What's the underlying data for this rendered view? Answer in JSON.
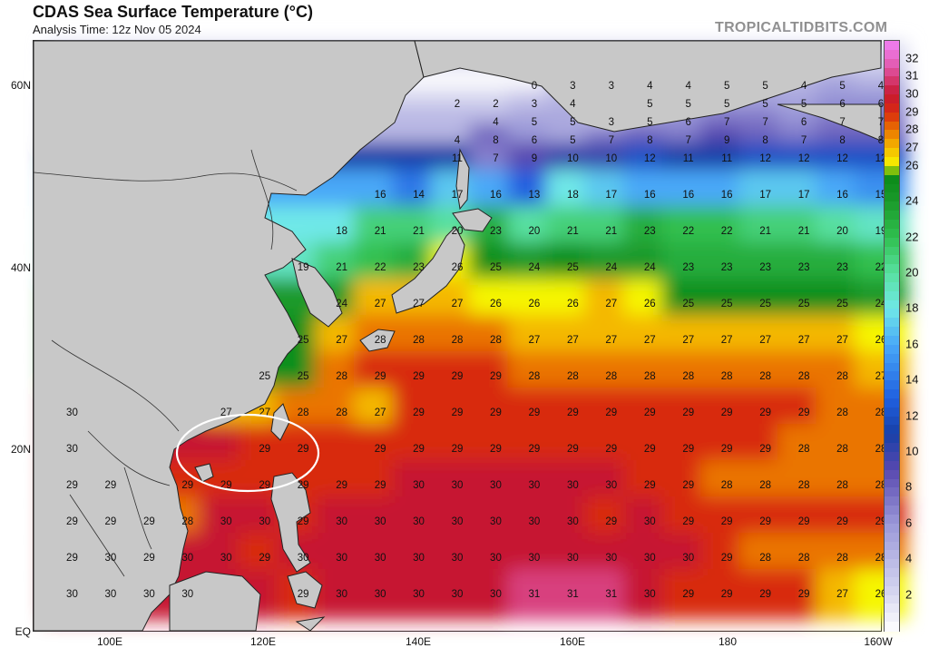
{
  "header": {
    "title": "CDAS Sea Surface Temperature (°C)",
    "subtitle": "Analysis Time: 12z Nov 05 2024",
    "credit": "TROPICALTIDBITS.COM"
  },
  "map": {
    "region": "Western/Central North Pacific",
    "lat_labels": [
      "60N",
      "40N",
      "20N",
      "EQ"
    ],
    "lon_labels": [
      "100E",
      "120E",
      "140E",
      "160E",
      "180",
      "160W"
    ],
    "highlight": "circle around Luzon Strait / northern South China Sea",
    "colors": {
      "land": "#c8c8c8",
      "coast": "#222222",
      "annotation_circle": "#ffffff"
    }
  },
  "sst_grid": {
    "lons": [
      95,
      100,
      105,
      110,
      115,
      120,
      125,
      130,
      135,
      140,
      145,
      150,
      155,
      160,
      165,
      170,
      175,
      180,
      185,
      190,
      195,
      200
    ],
    "rows": [
      {
        "lat": 62,
        "values": [
          null,
          null,
          null,
          null,
          null,
          null,
          null,
          null,
          null,
          null,
          null,
          null,
          null,
          null,
          null,
          null,
          null,
          null,
          null,
          null,
          null,
          null
        ]
      },
      {
        "lat": 60,
        "values": [
          null,
          null,
          null,
          null,
          null,
          null,
          null,
          null,
          null,
          null,
          null,
          null,
          0,
          3,
          3,
          4,
          4,
          5,
          5,
          4,
          5,
          4
        ]
      },
      {
        "lat": 58,
        "values": [
          null,
          null,
          null,
          null,
          null,
          null,
          null,
          null,
          null,
          null,
          2,
          2,
          3,
          4,
          null,
          5,
          5,
          5,
          5,
          5,
          6,
          6
        ]
      },
      {
        "lat": 56,
        "values": [
          null,
          null,
          null,
          null,
          null,
          null,
          null,
          null,
          null,
          null,
          null,
          4,
          5,
          5,
          3,
          5,
          6,
          7,
          7,
          6,
          7,
          7
        ]
      },
      {
        "lat": 54,
        "values": [
          null,
          null,
          null,
          null,
          null,
          null,
          null,
          null,
          null,
          null,
          4,
          8,
          6,
          5,
          7,
          8,
          7,
          9,
          8,
          7,
          8,
          8
        ]
      },
      {
        "lat": 52,
        "values": [
          null,
          null,
          null,
          null,
          null,
          null,
          null,
          null,
          null,
          null,
          11,
          7,
          9,
          10,
          10,
          12,
          11,
          11,
          12,
          12,
          12,
          12
        ]
      },
      {
        "lat": 48,
        "values": [
          null,
          null,
          null,
          null,
          null,
          null,
          null,
          null,
          16,
          14,
          17,
          16,
          13,
          18,
          17,
          16,
          16,
          16,
          17,
          17,
          16,
          15
        ]
      },
      {
        "lat": 44,
        "values": [
          null,
          null,
          null,
          null,
          null,
          null,
          null,
          18,
          21,
          21,
          20,
          23,
          20,
          21,
          21,
          23,
          22,
          22,
          21,
          21,
          20,
          19
        ]
      },
      {
        "lat": 40,
        "values": [
          null,
          null,
          null,
          null,
          null,
          null,
          19,
          21,
          22,
          23,
          26,
          25,
          24,
          25,
          24,
          24,
          23,
          23,
          23,
          23,
          23,
          22
        ]
      },
      {
        "lat": 36,
        "values": [
          null,
          null,
          null,
          null,
          null,
          null,
          null,
          24,
          27,
          27,
          27,
          26,
          26,
          26,
          27,
          26,
          25,
          25,
          25,
          25,
          25,
          24
        ]
      },
      {
        "lat": 32,
        "values": [
          null,
          null,
          null,
          null,
          null,
          null,
          25,
          27,
          28,
          28,
          28,
          28,
          27,
          27,
          27,
          27,
          27,
          27,
          27,
          27,
          27,
          26
        ]
      },
      {
        "lat": 28,
        "values": [
          null,
          null,
          null,
          null,
          null,
          25,
          25,
          28,
          29,
          29,
          29,
          29,
          28,
          28,
          28,
          28,
          28,
          28,
          28,
          28,
          28,
          27
        ]
      },
      {
        "lat": 24,
        "values": [
          30,
          null,
          null,
          null,
          27,
          27,
          28,
          28,
          27,
          29,
          29,
          29,
          29,
          29,
          29,
          29,
          29,
          29,
          29,
          29,
          28,
          28
        ]
      },
      {
        "lat": 20,
        "values": [
          30,
          null,
          null,
          null,
          null,
          29,
          29,
          null,
          29,
          29,
          29,
          29,
          29,
          29,
          29,
          29,
          29,
          29,
          29,
          28,
          28,
          28
        ]
      },
      {
        "lat": 16,
        "values": [
          29,
          29,
          null,
          29,
          29,
          29,
          29,
          29,
          29,
          30,
          30,
          30,
          30,
          30,
          30,
          29,
          29,
          28,
          28,
          28,
          28,
          28
        ]
      },
      {
        "lat": 12,
        "values": [
          29,
          29,
          29,
          28,
          30,
          30,
          29,
          30,
          30,
          30,
          30,
          30,
          30,
          30,
          29,
          30,
          29,
          29,
          29,
          29,
          29,
          29
        ]
      },
      {
        "lat": 8,
        "values": [
          29,
          30,
          29,
          30,
          30,
          29,
          30,
          30,
          30,
          30,
          30,
          30,
          30,
          30,
          30,
          30,
          30,
          29,
          28,
          28,
          28,
          28
        ]
      },
      {
        "lat": 4,
        "values": [
          30,
          30,
          30,
          30,
          null,
          null,
          29,
          30,
          30,
          30,
          30,
          30,
          31,
          31,
          31,
          30,
          29,
          29,
          29,
          29,
          27,
          26
        ]
      }
    ]
  },
  "colorbar": {
    "labels": [
      "32",
      "31",
      "30",
      "29",
      "28",
      "27",
      "26",
      "24",
      "22",
      "20",
      "18",
      "16",
      "14",
      "12",
      "10",
      "8",
      "6",
      "4",
      "2"
    ],
    "stops": [
      {
        "t": 0,
        "color": "#ffffff"
      },
      {
        "t": 2,
        "color": "#d8d8f0"
      },
      {
        "t": 6,
        "color": "#9a98d8"
      },
      {
        "t": 9,
        "color": "#5848b0"
      },
      {
        "t": 11,
        "color": "#1840a8"
      },
      {
        "t": 13,
        "color": "#2060e0"
      },
      {
        "t": 16,
        "color": "#48a8f8"
      },
      {
        "t": 18,
        "color": "#70e8e8"
      },
      {
        "t": 20,
        "color": "#58e0a0"
      },
      {
        "t": 22,
        "color": "#30c050"
      },
      {
        "t": 24,
        "color": "#1a9a2a"
      },
      {
        "t": 25.5,
        "color": "#0a8a18"
      },
      {
        "t": 26,
        "color": "#f6f600"
      },
      {
        "t": 27,
        "color": "#f4b800"
      },
      {
        "t": 28,
        "color": "#ea7400"
      },
      {
        "t": 29,
        "color": "#d82a10"
      },
      {
        "t": 30,
        "color": "#c61832"
      },
      {
        "t": 31,
        "color": "#d8407e"
      },
      {
        "t": 32,
        "color": "#e868c8"
      },
      {
        "t": 33,
        "color": "#f080f4"
      }
    ]
  }
}
